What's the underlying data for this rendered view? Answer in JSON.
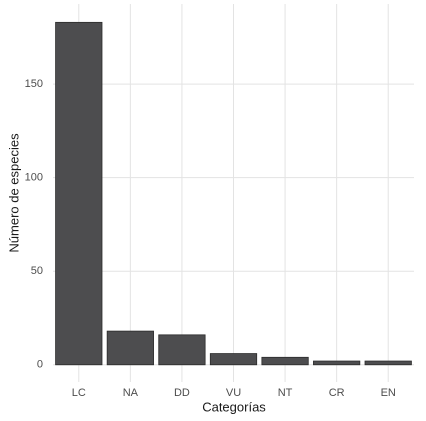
{
  "chart_data": {
    "type": "bar",
    "x_label": "Categorías",
    "y_label": "Número de especies",
    "categories": [
      "LC",
      "NA",
      "DD",
      "VU",
      "NT",
      "CR",
      "EN"
    ],
    "values": [
      183,
      18,
      16,
      6,
      4,
      2,
      2
    ],
    "color": "#4d4d4f",
    "ylim": [
      -9.2,
      192.8
    ],
    "yticks": [
      0,
      50,
      100,
      150
    ],
    "grid": true
  }
}
